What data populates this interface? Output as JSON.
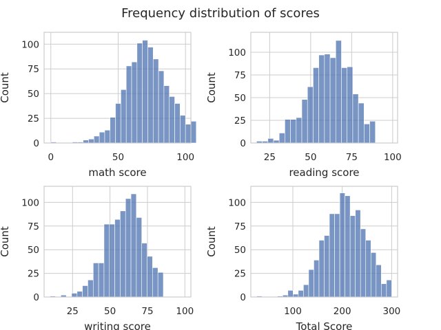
{
  "title": "Frequency distribution of scores",
  "chart_data": [
    {
      "type": "bar",
      "xlabel": "math score",
      "ylabel": "Count",
      "xlim": [
        -5,
        104
      ],
      "ylim": [
        0,
        112
      ],
      "xticks": [
        "0",
        "50",
        "100"
      ],
      "yticks": [
        "0",
        "25",
        "50",
        "75",
        "100"
      ],
      "bin_start": 0,
      "bin_width": 4,
      "values": [
        1,
        0,
        0,
        0,
        1,
        1,
        3,
        4,
        7,
        11,
        13,
        26,
        40,
        54,
        78,
        82,
        101,
        104,
        97,
        85,
        73,
        58,
        47,
        40,
        28,
        19,
        22
      ],
      "grid": true
    },
    {
      "type": "bar",
      "xlabel": "reading score",
      "ylabel": "Count",
      "xlim": [
        13.5,
        103
      ],
      "ylim": [
        0,
        122
      ],
      "xticks": [
        "25",
        "50",
        "75",
        "100"
      ],
      "yticks": [
        "0",
        "25",
        "50",
        "75",
        "100"
      ],
      "bin_start": 17,
      "bin_width": 3.45,
      "values": [
        2,
        2,
        5,
        3,
        11,
        26,
        26,
        28,
        48,
        62,
        83,
        97,
        98,
        94,
        113,
        83,
        84,
        54,
        44,
        21,
        24
      ],
      "grid": true
    },
    {
      "type": "bar",
      "xlabel": "writing score",
      "ylabel": "Count",
      "xlim": [
        6,
        104
      ],
      "ylim": [
        0,
        117
      ],
      "xticks": [
        "25",
        "50",
        "75",
        "100"
      ],
      "yticks": [
        "0",
        "25",
        "50",
        "75",
        "100"
      ],
      "bin_start": 10,
      "bin_width": 3.6,
      "values": [
        1,
        0,
        2,
        0,
        4,
        6,
        12,
        18,
        36,
        36,
        77,
        77,
        82,
        91,
        104,
        109,
        84,
        57,
        43,
        31,
        26
      ],
      "grid": true
    },
    {
      "type": "bar",
      "xlabel": "Total Score",
      "ylabel": "Count",
      "xlim": [
        15,
        312
      ],
      "ylim": [
        0,
        117
      ],
      "xticks": [
        "100",
        "200",
        "300"
      ],
      "yticks": [
        "0",
        "25",
        "50",
        "75",
        "100"
      ],
      "bin_start": 27,
      "bin_width": 10.5,
      "values": [
        1,
        0,
        0,
        0,
        1,
        2,
        7,
        3,
        7,
        13,
        29,
        39,
        60,
        65,
        88,
        88,
        110,
        107,
        86,
        92,
        72,
        60,
        47,
        34,
        14,
        18
      ],
      "grid": true
    }
  ]
}
